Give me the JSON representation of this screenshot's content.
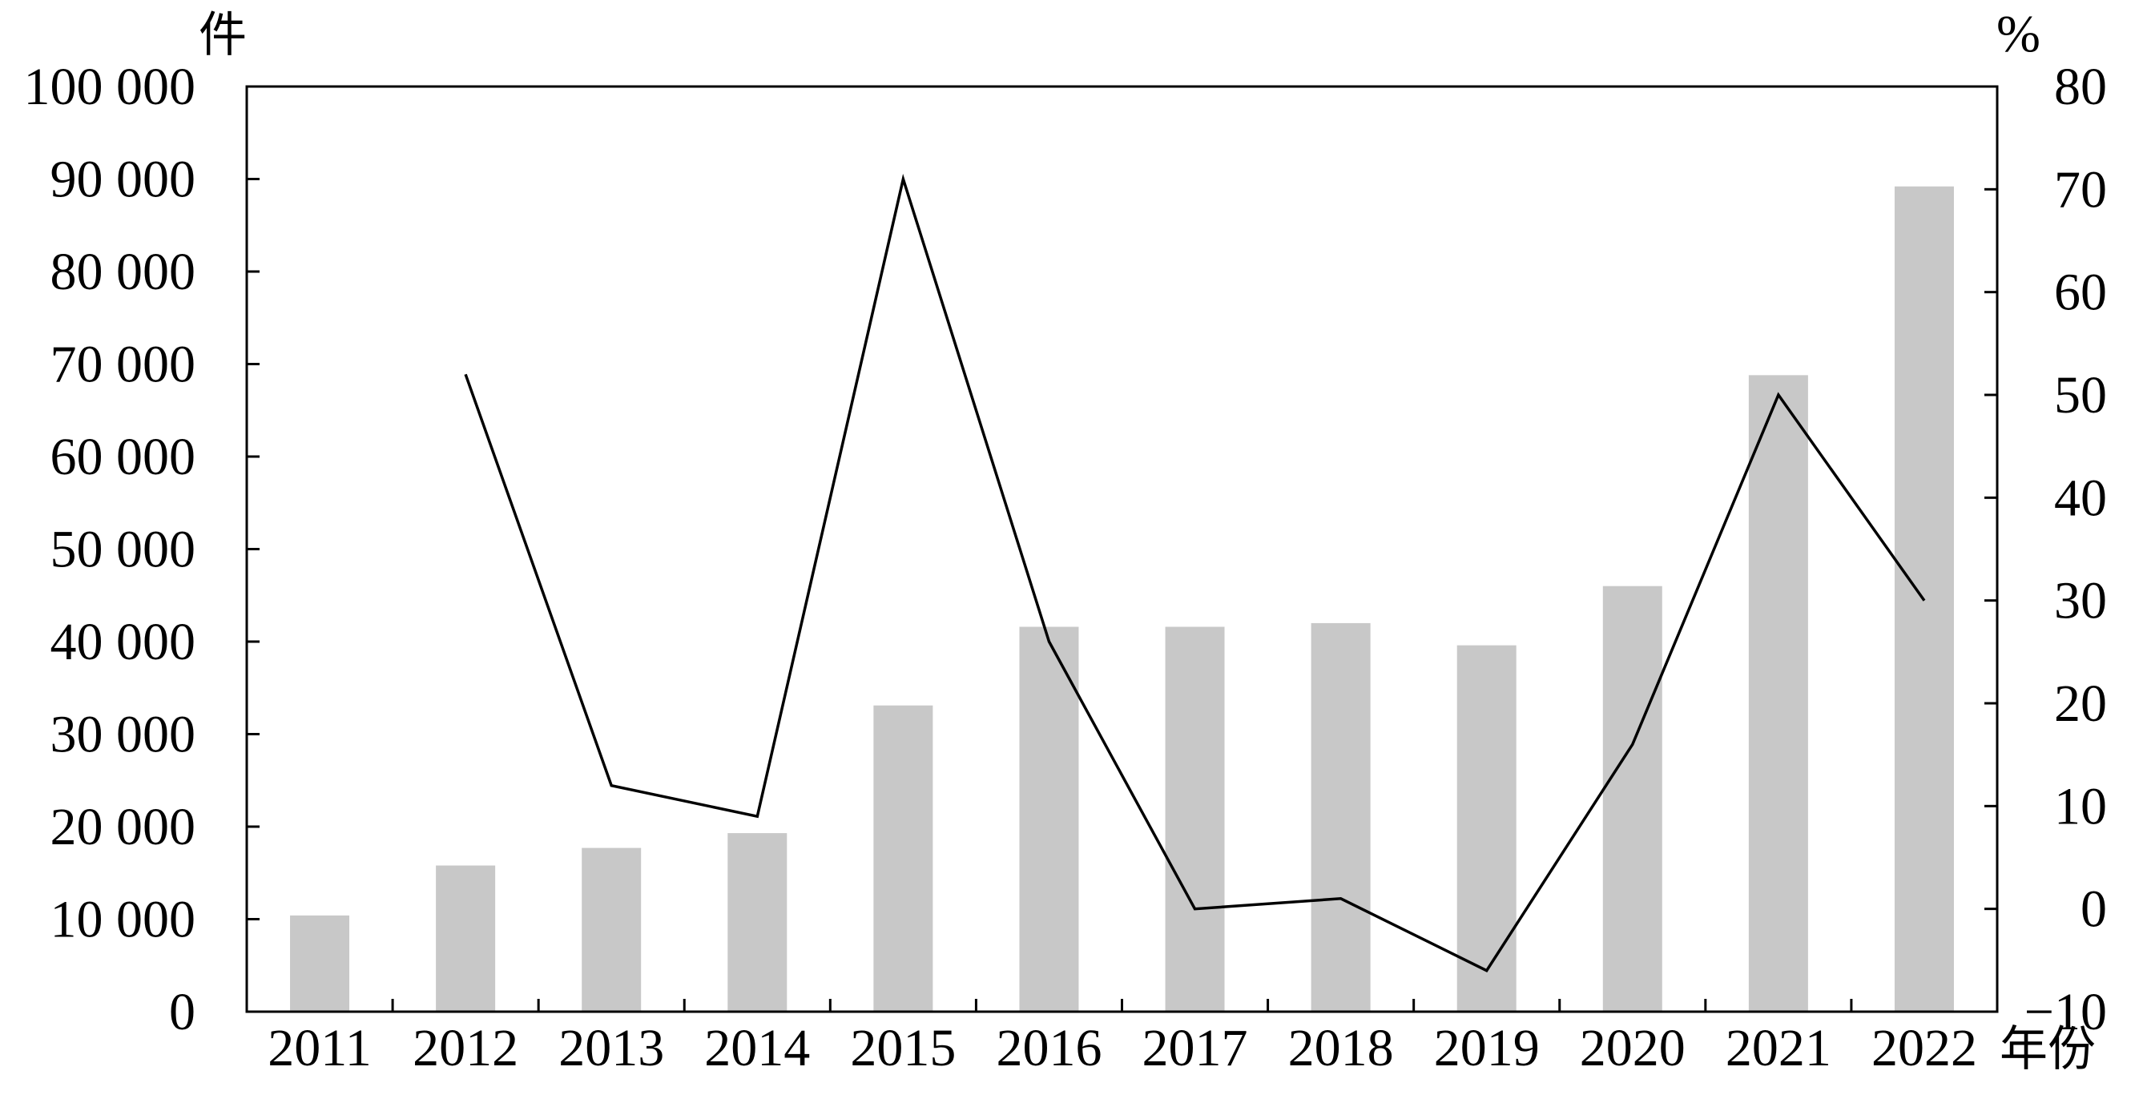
{
  "chart_data": {
    "type": "bar",
    "title": "",
    "categories": [
      "2011",
      "2012",
      "2013",
      "2014",
      "2015",
      "2016",
      "2017",
      "2018",
      "2019",
      "2020",
      "2021",
      "2022"
    ],
    "xlabel": "年份",
    "left_axis": {
      "unit": "件",
      "ylim": [
        0,
        100000
      ],
      "ticks": [
        0,
        10000,
        20000,
        30000,
        40000,
        50000,
        60000,
        70000,
        80000,
        90000,
        100000
      ],
      "tick_labels": [
        "0",
        "10 000",
        "20 000",
        "30 000",
        "40 000",
        "50 000",
        "60 000",
        "70 000",
        "80 000",
        "90 000",
        "100 000"
      ]
    },
    "right_axis": {
      "unit": "%",
      "ylim": [
        -10,
        80
      ],
      "ticks": [
        -10,
        0,
        10,
        20,
        30,
        40,
        50,
        60,
        70,
        80
      ],
      "tick_labels": [
        "−10",
        "0",
        "10",
        "20",
        "30",
        "40",
        "50",
        "60",
        "70",
        "80"
      ]
    },
    "series": [
      {
        "type": "bar",
        "axis": "left",
        "color": "#c8c8c8",
        "values": [
          10400,
          15800,
          17700,
          19300,
          33100,
          41600,
          41600,
          42000,
          39600,
          46000,
          68800,
          89200
        ]
      },
      {
        "type": "line",
        "axis": "right",
        "color": "#000000",
        "values": [
          null,
          52,
          12,
          9,
          71,
          26,
          0,
          1,
          -6,
          16,
          50,
          30
        ]
      }
    ],
    "grid": false,
    "legend": "none"
  }
}
